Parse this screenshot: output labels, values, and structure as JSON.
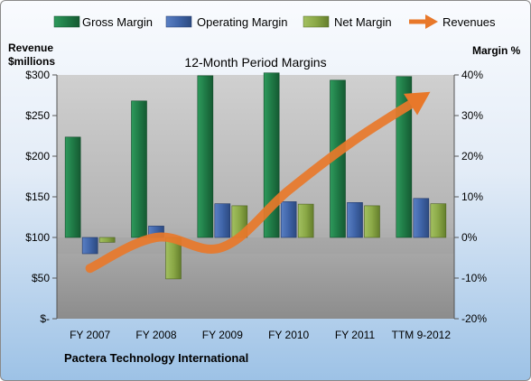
{
  "chart_data": {
    "type": "bar",
    "title": "12-Month Period Margins",
    "caption": "Pactera Technology International",
    "left_axis_title": [
      "Revenue",
      "$millions"
    ],
    "right_axis_title": "Margin %",
    "categories": [
      "FY 2007",
      "FY 2008",
      "FY 2009",
      "FY 2010",
      "FY 2011",
      "TTM 9-2012"
    ],
    "left_axis": {
      "min": 0,
      "max": 300,
      "step": 50,
      "tick_labels": [
        "$-",
        "$50",
        "$100",
        "$150",
        "$200",
        "$250",
        "$300"
      ]
    },
    "right_axis": {
      "min": -20,
      "max": 40,
      "step": 10,
      "tick_labels": [
        "-20%",
        "-10%",
        "0%",
        "10%",
        "20%",
        "30%",
        "40%"
      ]
    },
    "series": [
      {
        "name": "Gross Margin",
        "kind": "bar",
        "axis": "right",
        "color": "#1f7a46",
        "values": [
          24.7,
          33.6,
          39.8,
          40.5,
          38.7,
          39.6
        ]
      },
      {
        "name": "Operating Margin",
        "kind": "bar",
        "axis": "right",
        "color": "#3f64a8",
        "values": [
          -4.0,
          2.8,
          8.3,
          8.8,
          8.6,
          9.6
        ]
      },
      {
        "name": "Net Margin",
        "kind": "bar",
        "axis": "right",
        "color": "#7d9c3a",
        "values": [
          -1.2,
          -10.2,
          7.8,
          8.2,
          7.8,
          8.3
        ]
      },
      {
        "name": "Revenues",
        "kind": "line",
        "axis": "left",
        "color": "#e8782a",
        "values": [
          62,
          100,
          88,
          158,
          220,
          272
        ]
      }
    ],
    "legend_position": "top",
    "grid": false,
    "colors": {
      "plot_top": "#c8c8c8",
      "plot_bottom": "#8f8f8f",
      "plot_zero_band": "#b3b3b3"
    }
  }
}
